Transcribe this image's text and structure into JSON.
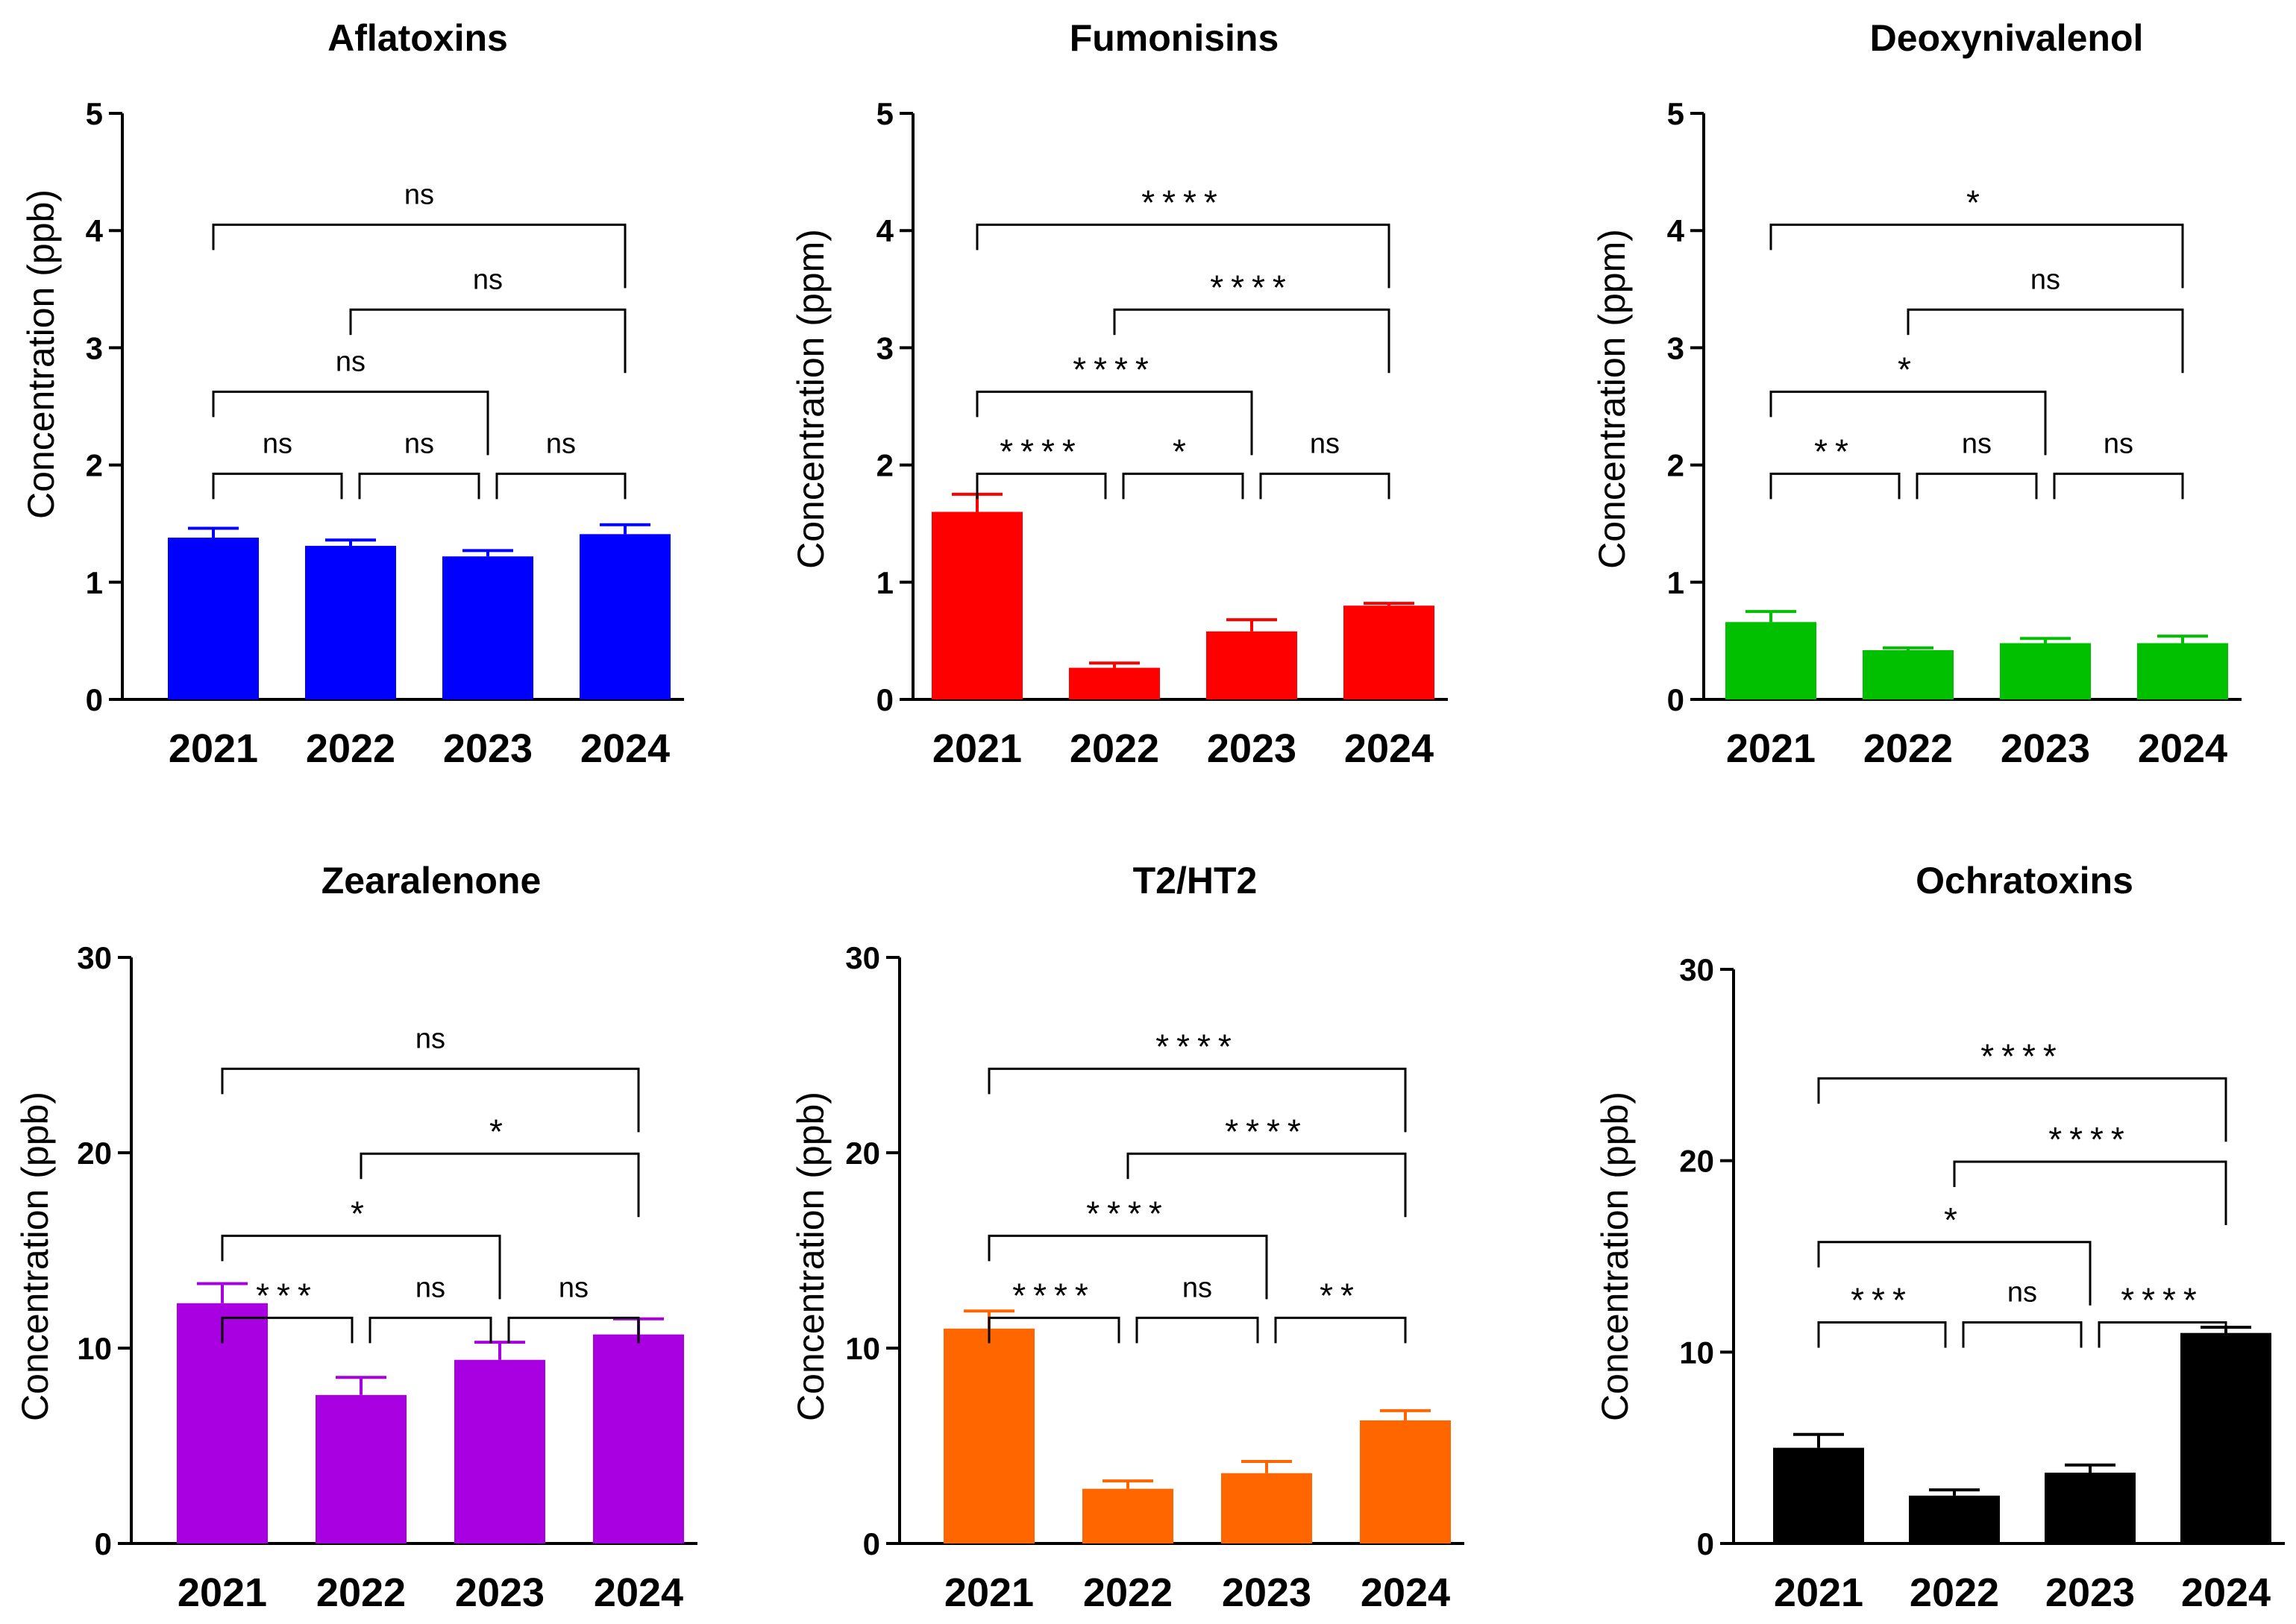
{
  "chart_data": [
    {
      "type": "bar",
      "title": "Aflatoxins",
      "xlabel": "",
      "ylabel": "Concentration (ppb)",
      "categories": [
        "2021",
        "2022",
        "2023",
        "2024"
      ],
      "values": [
        1.38,
        1.31,
        1.22,
        1.41
      ],
      "errors": [
        0.08,
        0.05,
        0.05,
        0.08
      ],
      "ylim": [
        0,
        5
      ],
      "yticks": [
        "0",
        "1",
        "2",
        "3",
        "4",
        "5"
      ],
      "color": "#0000ff",
      "comparisons": [
        {
          "from": "2021",
          "to": "2022",
          "label": "ns"
        },
        {
          "from": "2022",
          "to": "2023",
          "label": "ns"
        },
        {
          "from": "2023",
          "to": "2024",
          "label": "ns"
        },
        {
          "from": "2021",
          "to": "2023",
          "label": "ns"
        },
        {
          "from": "2022",
          "to": "2024",
          "label": "ns"
        },
        {
          "from": "2021",
          "to": "2024",
          "label": "ns"
        }
      ]
    },
    {
      "type": "bar",
      "title": "Fumonisins",
      "xlabel": "",
      "ylabel": "Concentration (ppm)",
      "categories": [
        "2021",
        "2022",
        "2023",
        "2024"
      ],
      "values": [
        1.6,
        0.27,
        0.58,
        0.8
      ],
      "errors": [
        0.15,
        0.04,
        0.1,
        0.02
      ],
      "ylim": [
        0,
        5
      ],
      "yticks": [
        "0",
        "1",
        "2",
        "3",
        "4",
        "5"
      ],
      "color": "#ff0000",
      "comparisons": [
        {
          "from": "2021",
          "to": "2022",
          "label": "****"
        },
        {
          "from": "2022",
          "to": "2023",
          "label": "*"
        },
        {
          "from": "2023",
          "to": "2024",
          "label": "ns"
        },
        {
          "from": "2021",
          "to": "2023",
          "label": "****"
        },
        {
          "from": "2022",
          "to": "2024",
          "label": "****"
        },
        {
          "from": "2021",
          "to": "2024",
          "label": "****"
        }
      ]
    },
    {
      "type": "bar",
      "title": "Deoxynivalenol",
      "xlabel": "",
      "ylabel": "Concentration (ppm)",
      "categories": [
        "2021",
        "2022",
        "2023",
        "2024"
      ],
      "values": [
        0.66,
        0.42,
        0.48,
        0.48
      ],
      "errors": [
        0.09,
        0.02,
        0.04,
        0.06
      ],
      "ylim": [
        0,
        5
      ],
      "yticks": [
        "0",
        "1",
        "2",
        "3",
        "4",
        "5"
      ],
      "color": "#00c000",
      "comparisons": [
        {
          "from": "2021",
          "to": "2022",
          "label": "**"
        },
        {
          "from": "2022",
          "to": "2023",
          "label": "ns"
        },
        {
          "from": "2023",
          "to": "2024",
          "label": "ns"
        },
        {
          "from": "2021",
          "to": "2023",
          "label": "*"
        },
        {
          "from": "2022",
          "to": "2024",
          "label": "ns"
        },
        {
          "from": "2021",
          "to": "2024",
          "label": "*"
        }
      ]
    },
    {
      "type": "bar",
      "title": "Zearalenone",
      "xlabel": "",
      "ylabel": "Concentration (ppb)",
      "categories": [
        "2021",
        "2022",
        "2023",
        "2024"
      ],
      "values": [
        12.3,
        7.6,
        9.4,
        10.7
      ],
      "errors": [
        1.0,
        0.9,
        0.9,
        0.8
      ],
      "ylim": [
        0,
        30
      ],
      "yticks": [
        "0",
        "10",
        "20",
        "30"
      ],
      "color": "#a800e0",
      "comparisons": [
        {
          "from": "2021",
          "to": "2022",
          "label": "***"
        },
        {
          "from": "2022",
          "to": "2023",
          "label": "ns"
        },
        {
          "from": "2023",
          "to": "2024",
          "label": "ns"
        },
        {
          "from": "2021",
          "to": "2023",
          "label": "*"
        },
        {
          "from": "2022",
          "to": "2024",
          "label": "*"
        },
        {
          "from": "2021",
          "to": "2024",
          "label": "ns"
        }
      ]
    },
    {
      "type": "bar",
      "title": "T2/HT2",
      "xlabel": "",
      "ylabel": "Concentration (ppb)",
      "categories": [
        "2021",
        "2022",
        "2023",
        "2024"
      ],
      "values": [
        11.0,
        2.8,
        3.6,
        6.3
      ],
      "errors": [
        0.9,
        0.4,
        0.6,
        0.5
      ],
      "ylim": [
        0,
        30
      ],
      "yticks": [
        "0",
        "10",
        "20",
        "30"
      ],
      "color": "#ff6600",
      "comparisons": [
        {
          "from": "2021",
          "to": "2022",
          "label": "****"
        },
        {
          "from": "2022",
          "to": "2023",
          "label": "ns"
        },
        {
          "from": "2023",
          "to": "2024",
          "label": "**"
        },
        {
          "from": "2021",
          "to": "2023",
          "label": "****"
        },
        {
          "from": "2022",
          "to": "2024",
          "label": "****"
        },
        {
          "from": "2021",
          "to": "2024",
          "label": "****"
        }
      ]
    },
    {
      "type": "bar",
      "title": "Ochratoxins",
      "xlabel": "",
      "ylabel": "Concentration (ppb)",
      "categories": [
        "2021",
        "2022",
        "2023",
        "2024"
      ],
      "values": [
        5.0,
        2.5,
        3.7,
        11.0
      ],
      "errors": [
        0.7,
        0.3,
        0.4,
        0.3
      ],
      "ylim": [
        0,
        30
      ],
      "yticks": [
        "0",
        "10",
        "20",
        "30"
      ],
      "color": "#000000",
      "comparisons": [
        {
          "from": "2021",
          "to": "2022",
          "label": "***"
        },
        {
          "from": "2022",
          "to": "2023",
          "label": "ns"
        },
        {
          "from": "2023",
          "to": "2024",
          "label": "****"
        },
        {
          "from": "2021",
          "to": "2023",
          "label": "*"
        },
        {
          "from": "2022",
          "to": "2024",
          "label": "****"
        },
        {
          "from": "2021",
          "to": "2024",
          "label": "****"
        }
      ]
    }
  ]
}
